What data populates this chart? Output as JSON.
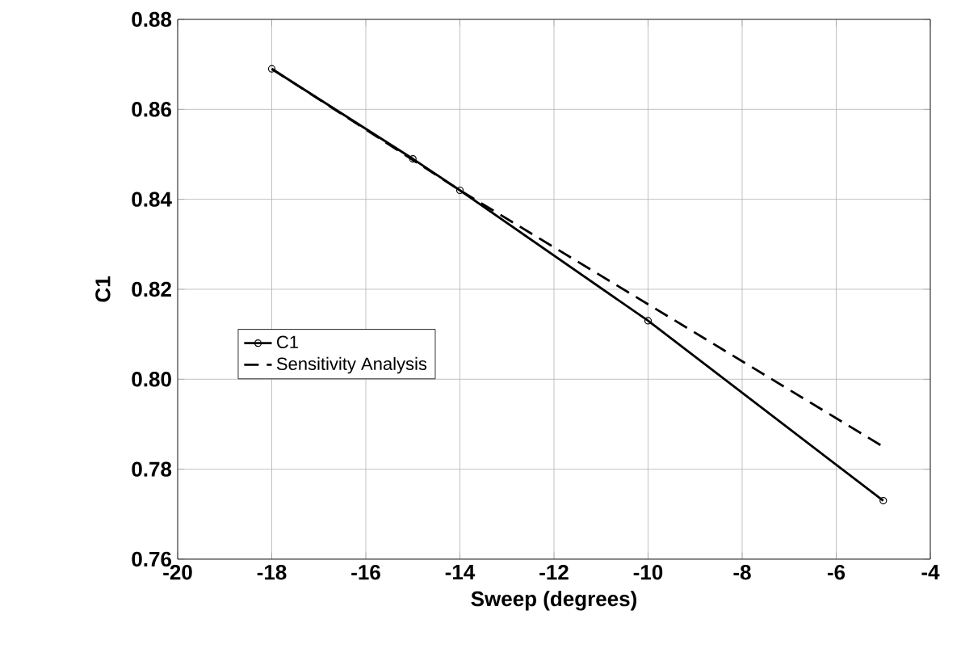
{
  "chart_data": {
    "type": "line",
    "xlabel": "Sweep  (degrees)",
    "ylabel": "C1",
    "xlim": [
      -20,
      -4
    ],
    "xticks": [
      -20,
      -18,
      -16,
      -14,
      -12,
      -10,
      -8,
      -6,
      -4
    ],
    "ylim": [
      0.76,
      0.88
    ],
    "yticks": [
      {
        "value": 0.76,
        "label": "0.76"
      },
      {
        "value": 0.78,
        "label": "0.78"
      },
      {
        "value": 0.8,
        "label": "0.80"
      },
      {
        "value": 0.82,
        "label": "0.82"
      },
      {
        "value": 0.84,
        "label": "0.84"
      },
      {
        "value": 0.86,
        "label": "0.86"
      },
      {
        "value": 0.88,
        "label": "0.88"
      }
    ],
    "grid": true,
    "legend": "left",
    "series": [
      {
        "name": "C1",
        "color": "#000000",
        "marker": "circle",
        "line_style": "solid",
        "x": [
          -18,
          -15,
          -14,
          -10,
          -5
        ],
        "values": [
          0.869,
          0.849,
          0.842,
          0.813,
          0.773
        ]
      },
      {
        "name": "Sensitivity Analysis",
        "color": "#000000",
        "marker": "none",
        "line_style": "dashed",
        "x": [
          -18,
          -14,
          -5
        ],
        "values": [
          0.869,
          0.842,
          0.785
        ]
      }
    ]
  }
}
